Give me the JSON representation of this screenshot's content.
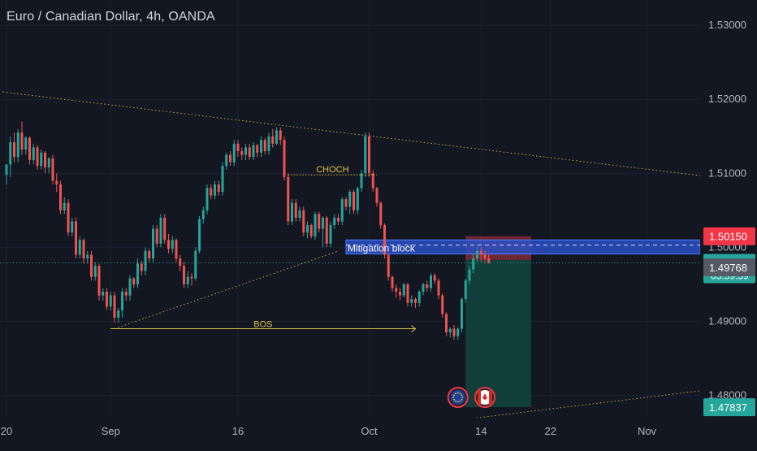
{
  "header": {
    "title": "Euro / Canadian Dollar, 4h, OANDA"
  },
  "colors": {
    "background": "#131722",
    "up": "#26a69a",
    "down": "#ef5350",
    "text": "#b2b5be",
    "annotation": "#e0c341",
    "block_fill": "#2a4fc4",
    "block_line": "#4d7cff",
    "stop_fill": "#7a2a35",
    "target_fill": "#11403a",
    "badge_current": "#26a69a",
    "badge_stop": "#f23645",
    "badge_prev": "#555a66"
  },
  "chart_data": {
    "type": "candlestick",
    "symbol": "Euro / Canadian Dollar",
    "interval": "4h",
    "broker": "OANDA",
    "ylim": [
      1.4772,
      1.5332
    ],
    "y_ticks": [
      {
        "value": 1.53,
        "label": "1.53000"
      },
      {
        "value": 1.52,
        "label": "1.52000"
      },
      {
        "value": 1.51,
        "label": "1.51000"
      },
      {
        "value": 1.5,
        "label": "1.50000"
      },
      {
        "value": 1.49,
        "label": "1.49000"
      },
      {
        "value": 1.48,
        "label": "1.48000"
      }
    ],
    "x_ticks": [
      {
        "i": 0,
        "label": "20"
      },
      {
        "i": 27,
        "label": "Sep"
      },
      {
        "i": 60,
        "label": "16"
      },
      {
        "i": 94,
        "label": "Oct"
      },
      {
        "i": 123,
        "label": "14"
      },
      {
        "i": 141,
        "label": "22"
      },
      {
        "i": 166,
        "label": "Nov"
      }
    ],
    "candles": {
      "open": [
        1.5098,
        1.5112,
        1.5142,
        1.5122,
        1.5155,
        1.5132,
        1.5148,
        1.5118,
        1.5135,
        1.511,
        1.5128,
        1.5108,
        1.512,
        1.509,
        1.5085,
        1.505,
        1.506,
        1.502,
        1.5035,
        1.499,
        1.501,
        1.4985,
        1.499,
        1.496,
        1.4975,
        1.4935,
        1.494,
        1.492,
        1.4935,
        1.4905,
        1.4915,
        1.494,
        1.4935,
        1.4958,
        1.495,
        1.4978,
        1.4968,
        1.4995,
        1.4985,
        1.5025,
        1.5005,
        1.504,
        1.501,
        1.4998,
        1.501,
        1.4985,
        1.4975,
        1.495,
        1.496,
        1.4958,
        1.4995,
        1.5038,
        1.505,
        1.508,
        1.507,
        1.5085,
        1.5075,
        1.511,
        1.5125,
        1.5115,
        1.514,
        1.513,
        1.5125,
        1.5135,
        1.5122,
        1.5138,
        1.5128,
        1.5145,
        1.513,
        1.515,
        1.514,
        1.5158,
        1.5145,
        1.5095,
        1.5035,
        1.506,
        1.504,
        1.505,
        1.502,
        1.503,
        1.5015,
        1.5045,
        1.5025,
        1.504,
        1.5005,
        1.503,
        1.504,
        1.5035,
        1.5065,
        1.5055,
        1.5075,
        1.505,
        1.508,
        1.51,
        1.515,
        1.51,
        1.508,
        1.506,
        1.503,
        1.499,
        1.496,
        1.4945,
        1.494,
        1.4935,
        1.495,
        1.4925,
        1.493,
        1.4925,
        1.494,
        1.495,
        1.4945,
        1.4962,
        1.4955,
        1.4935,
        1.491,
        1.4885,
        1.489,
        1.488,
        1.489,
        1.493,
        1.4955,
        1.497,
        1.4985,
        1.4995,
        1.499,
        1.4985
      ],
      "high": [
        1.511,
        1.515,
        1.5155,
        1.516,
        1.517,
        1.515,
        1.515,
        1.514,
        1.5138,
        1.5132,
        1.513,
        1.5122,
        1.5125,
        1.51,
        1.509,
        1.5068,
        1.5065,
        1.504,
        1.504,
        1.5015,
        1.5012,
        1.4995,
        1.4995,
        1.498,
        1.4978,
        1.4945,
        1.4945,
        1.494,
        1.494,
        1.4918,
        1.4945,
        1.4945,
        1.4962,
        1.496,
        1.4985,
        1.4982,
        1.5,
        1.4998,
        1.503,
        1.503,
        1.5045,
        1.5045,
        1.5018,
        1.5015,
        1.5012,
        1.499,
        1.498,
        1.4968,
        1.4965,
        1.5,
        1.5042,
        1.5055,
        1.5085,
        1.5085,
        1.509,
        1.509,
        1.5115,
        1.5128,
        1.513,
        1.5145,
        1.5145,
        1.5135,
        1.514,
        1.514,
        1.5142,
        1.514,
        1.515,
        1.5148,
        1.5155,
        1.516,
        1.5162,
        1.5162,
        1.515,
        1.51,
        1.5065,
        1.5065,
        1.5055,
        1.5055,
        1.5035,
        1.5032,
        1.5048,
        1.5048,
        1.5042,
        1.5042,
        1.5035,
        1.5045,
        1.5045,
        1.5068,
        1.5068,
        1.5078,
        1.5078,
        1.5082,
        1.5105,
        1.5155,
        1.5155,
        1.5105,
        1.5082,
        1.5062,
        1.5032,
        1.4992,
        1.4962,
        1.495,
        1.4945,
        1.4952,
        1.4952,
        1.4935,
        1.4932,
        1.4942,
        1.4952,
        1.4955,
        1.4965,
        1.4965,
        1.4958,
        1.4938,
        1.4912,
        1.4892,
        1.4895,
        1.4892,
        1.4932,
        1.4958,
        1.4975,
        1.4992,
        1.5,
        1.5,
        1.4995,
        1.499
      ],
      "low": [
        1.5085,
        1.5095,
        1.5115,
        1.5115,
        1.5125,
        1.5125,
        1.5112,
        1.5112,
        1.5105,
        1.5105,
        1.51,
        1.51,
        1.5085,
        1.5075,
        1.5045,
        1.5045,
        1.5015,
        1.5015,
        1.4985,
        1.4985,
        1.4978,
        1.4978,
        1.4955,
        1.4955,
        1.4928,
        1.4928,
        1.4915,
        1.4915,
        1.4898,
        1.4898,
        1.4905,
        1.4928,
        1.4928,
        1.4945,
        1.4945,
        1.4962,
        1.4962,
        1.498,
        1.498,
        1.5,
        1.5,
        1.5005,
        1.4992,
        1.4992,
        1.498,
        1.4968,
        1.4945,
        1.4945,
        1.4948,
        1.4955,
        1.4992,
        1.5032,
        1.5045,
        1.5065,
        1.5065,
        1.507,
        1.507,
        1.5105,
        1.511,
        1.511,
        1.5122,
        1.5118,
        1.5118,
        1.5118,
        1.5118,
        1.5122,
        1.5122,
        1.5125,
        1.5125,
        1.5135,
        1.5138,
        1.5138,
        1.509,
        1.503,
        1.503,
        1.5035,
        1.5035,
        1.5015,
        1.5012,
        1.5012,
        1.501,
        1.502,
        1.5,
        1.5,
        1.5,
        1.5025,
        1.503,
        1.503,
        1.505,
        1.5045,
        1.5045,
        1.5045,
        1.5075,
        1.5095,
        1.5095,
        1.5075,
        1.5055,
        1.5025,
        1.4985,
        1.4955,
        1.494,
        1.4932,
        1.4928,
        1.4932,
        1.492,
        1.492,
        1.4918,
        1.492,
        1.4935,
        1.494,
        1.494,
        1.495,
        1.493,
        1.4905,
        1.488,
        1.4878,
        1.4875,
        1.4875,
        1.4885,
        1.4925,
        1.495,
        1.4965,
        1.498,
        1.498,
        1.498,
        1.4978
      ],
      "close": [
        1.5112,
        1.5142,
        1.5122,
        1.5155,
        1.5132,
        1.5148,
        1.5118,
        1.5135,
        1.511,
        1.5128,
        1.5108,
        1.512,
        1.509,
        1.5085,
        1.505,
        1.506,
        1.502,
        1.5035,
        1.499,
        1.501,
        1.4985,
        1.499,
        1.496,
        1.4975,
        1.4935,
        1.494,
        1.492,
        1.4935,
        1.4905,
        1.4915,
        1.494,
        1.4935,
        1.4958,
        1.495,
        1.4978,
        1.4968,
        1.4995,
        1.4985,
        1.5025,
        1.5005,
        1.504,
        1.501,
        1.4998,
        1.501,
        1.4985,
        1.4975,
        1.495,
        1.496,
        1.4958,
        1.4995,
        1.5038,
        1.505,
        1.508,
        1.507,
        1.5085,
        1.5075,
        1.511,
        1.5125,
        1.5115,
        1.514,
        1.513,
        1.5125,
        1.5135,
        1.5122,
        1.5138,
        1.5128,
        1.5145,
        1.513,
        1.515,
        1.514,
        1.5158,
        1.5145,
        1.5095,
        1.5035,
        1.506,
        1.504,
        1.505,
        1.502,
        1.503,
        1.5015,
        1.5045,
        1.5025,
        1.504,
        1.5005,
        1.503,
        1.504,
        1.5035,
        1.5065,
        1.5055,
        1.5075,
        1.505,
        1.508,
        1.51,
        1.515,
        1.51,
        1.508,
        1.506,
        1.503,
        1.499,
        1.496,
        1.4945,
        1.494,
        1.4935,
        1.495,
        1.4925,
        1.493,
        1.4925,
        1.494,
        1.495,
        1.4945,
        1.4962,
        1.4955,
        1.4935,
        1.491,
        1.4885,
        1.489,
        1.488,
        1.489,
        1.493,
        1.4955,
        1.497,
        1.4985,
        1.4995,
        1.499,
        1.4985,
        1.4979
      ]
    },
    "trendlines": [
      {
        "name": "upper",
        "from": {
          "i": -1,
          "price": 1.521
        },
        "to": {
          "i": 186,
          "price": 1.5093
        }
      },
      {
        "name": "ascending",
        "from": {
          "i": 28,
          "price": 1.489
        },
        "to": {
          "i": 86,
          "price": 1.4995
        }
      },
      {
        "name": "lower",
        "from": {
          "i": 56,
          "price": 1.4728
        },
        "to": {
          "i": 186,
          "price": 1.481
        }
      }
    ],
    "bos": {
      "label": "BOS",
      "from_i": 27,
      "to_i": 106,
      "price": 1.489
    },
    "choch": {
      "label": "CHOCH",
      "from_i": 73,
      "to_i": 96,
      "price": 1.5098
    },
    "mitigation_block": {
      "label": "Mitigation block",
      "from_i": 88,
      "to_i": 186,
      "top": 1.501,
      "bottom": 1.4991,
      "midline": 1.5003
    },
    "position": {
      "from_i": 119,
      "to_i": 136,
      "stop": 1.5015,
      "entry": 1.4983,
      "target": 1.4784
    },
    "current_price_line": 1.4979,
    "price_labels": [
      {
        "text": "1.50150",
        "price": 1.5015,
        "role": "stop"
      },
      {
        "text": "1.49792",
        "price": 1.4979,
        "role": "current",
        "countdown": "03:59:59"
      },
      {
        "text": "1.49768",
        "price": 1.4977,
        "role": "previous"
      },
      {
        "text": "1.47837",
        "price": 1.4784,
        "role": "target"
      }
    ],
    "event_flags": [
      {
        "i": 117,
        "icon": "eu-flag-icon"
      },
      {
        "i": 124,
        "icon": "canada-flag-icon"
      }
    ]
  }
}
